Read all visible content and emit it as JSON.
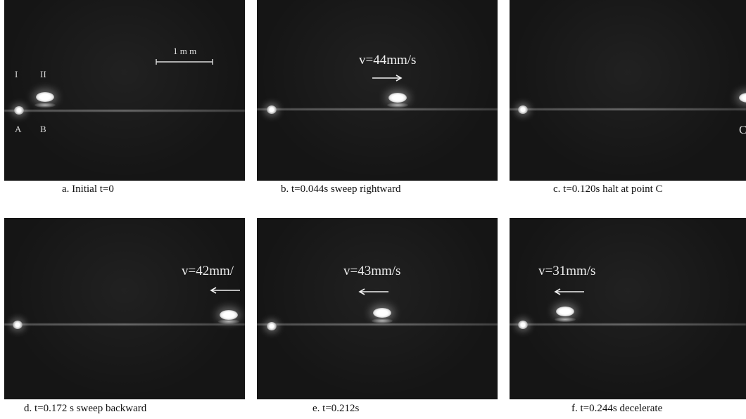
{
  "scale": {
    "label": "1 m m"
  },
  "markers": {
    "i": "I",
    "ii": "II",
    "a": "A",
    "b": "B",
    "c": "C"
  },
  "panels": [
    {
      "id": "a",
      "caption": "a. Initial t=0",
      "velocity": ""
    },
    {
      "id": "b",
      "caption": "b. t=0.044s sweep rightward",
      "velocity": "v=44mm/s",
      "arrow": "right"
    },
    {
      "id": "c",
      "caption": "c. t=0.120s halt at point C",
      "velocity": ""
    },
    {
      "id": "d",
      "caption": "d. t=0.172 s sweep backward",
      "velocity": "v=42mm/",
      "arrow": "left"
    },
    {
      "id": "e",
      "caption": "e. t=0.212s",
      "velocity": "v=43mm/s",
      "arrow": "left"
    },
    {
      "id": "f",
      "caption": "f. t=0.244s decelerate",
      "velocity": "v=31mm/s",
      "arrow": "left"
    }
  ],
  "colors": {
    "panel_bg": "#151515",
    "caption_text": "#111111",
    "overlay_text": "#eeeeee"
  }
}
